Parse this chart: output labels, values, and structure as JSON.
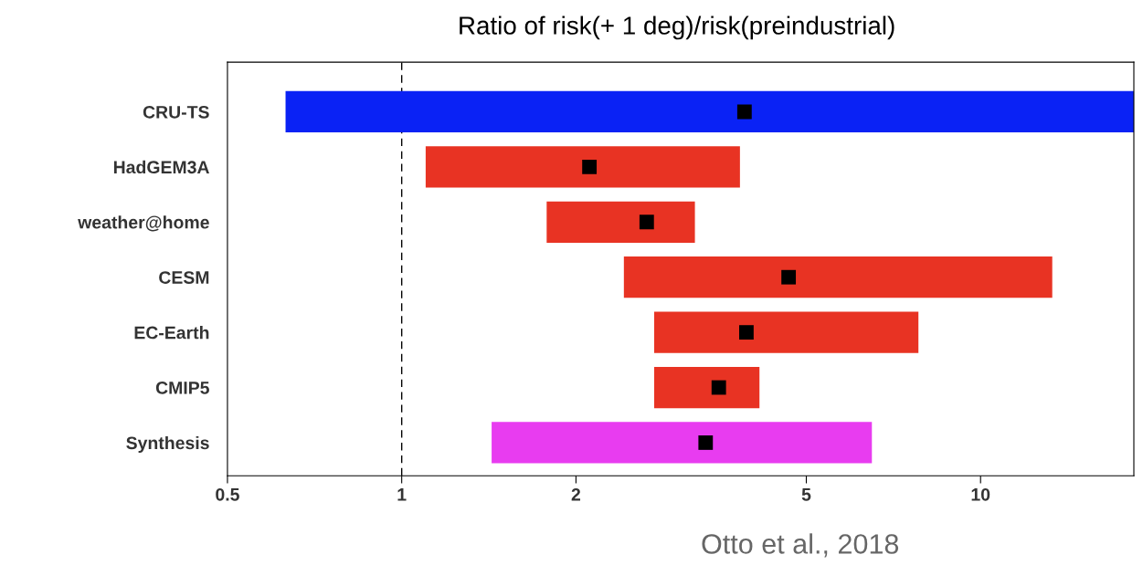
{
  "chart_data": {
    "type": "bar",
    "orientation": "horizontal",
    "log": "x",
    "title": "Ratio of risk(+ 1 deg)/risk(preindustrial)",
    "categories": [
      "CRU-TS",
      "HadGEM3A",
      "weather@home",
      "CESM",
      "EC-Earth",
      "CMIP5",
      "Synthesis"
    ],
    "series": [
      {
        "type": "bar",
        "base": [
          0.63,
          1.1,
          1.78,
          2.42,
          2.73,
          2.73,
          1.43
        ],
        "values": [
          17.77,
          2.74,
          1.43,
          10.88,
          5.08,
          1.42,
          5.06
        ],
        "colors": [
          "#0a22f5",
          "#e83323",
          "#e83323",
          "#e83323",
          "#e83323",
          "#e83323",
          "#e83cf0"
        ]
      },
      {
        "type": "scatter",
        "marker": "square",
        "color": "#000000",
        "values": [
          3.91,
          2.11,
          2.65,
          4.66,
          3.94,
          3.53,
          3.35
        ]
      }
    ],
    "xlim": [
      0.5,
      18.4
    ],
    "xticks": [
      0.5,
      1,
      2,
      5,
      10
    ],
    "ref_lines": [
      {
        "axis": "x",
        "value": 1,
        "color": "#000000",
        "line_style": "dashed"
      }
    ],
    "annotations": [
      "Otto et al., 2018"
    ],
    "grid": false,
    "legend": false
  }
}
